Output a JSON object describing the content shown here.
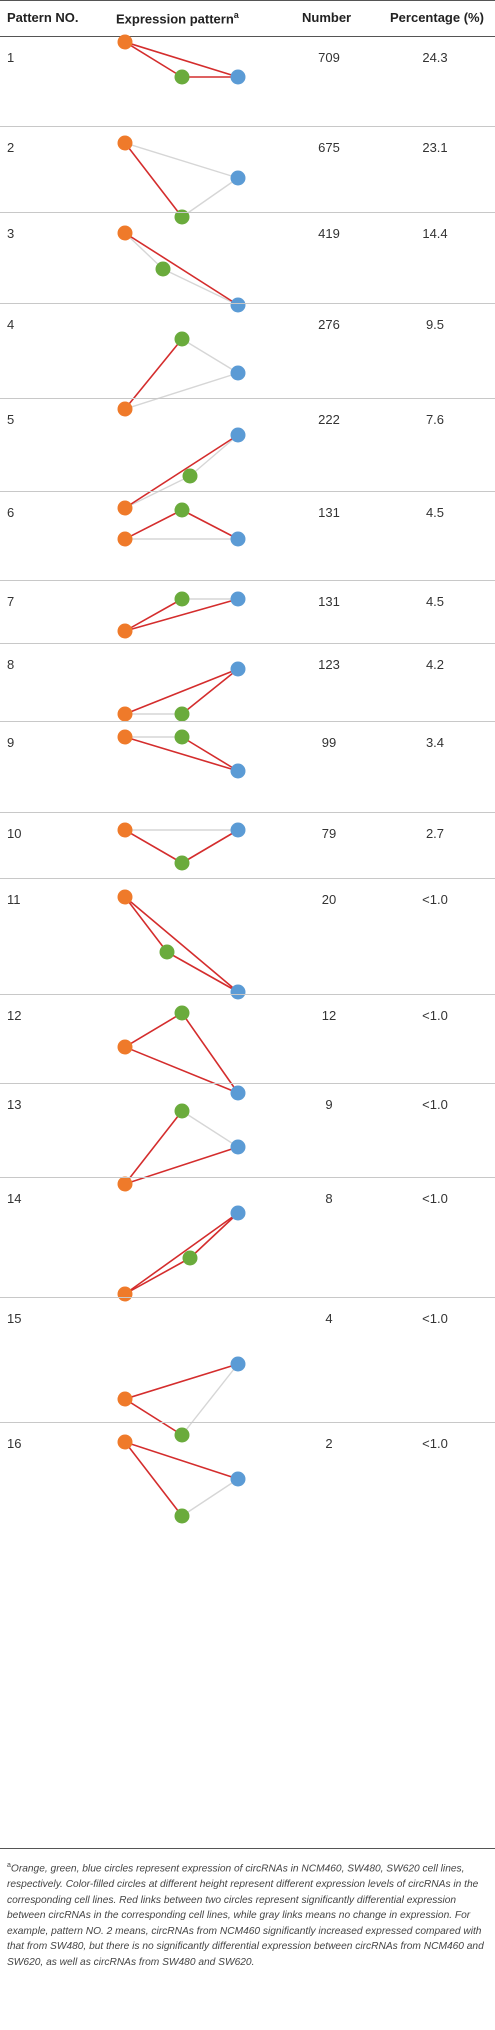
{
  "header": {
    "col_pattern": "Pattern NO.",
    "col_expression": "Expression pattern",
    "col_expression_note": "a",
    "col_number": "Number",
    "col_percentage": "Percentage (%)"
  },
  "colors": {
    "orange": "#ef7a2a",
    "green": "#6aab3c",
    "blue": "#5b9bd5",
    "link_significant": "#d42d2d",
    "link_nochange": "#d6d6d6"
  },
  "rows": [
    {
      "no": "1",
      "number": "709",
      "percentage": "24.3"
    },
    {
      "no": "2",
      "number": "675",
      "percentage": "23.1"
    },
    {
      "no": "3",
      "number": "419",
      "percentage": "14.4"
    },
    {
      "no": "4",
      "number": "276",
      "percentage": "9.5"
    },
    {
      "no": "5",
      "number": "222",
      "percentage": "7.6"
    },
    {
      "no": "6",
      "number": "131",
      "percentage": "4.5"
    },
    {
      "no": "7",
      "number": "131",
      "percentage": "4.5"
    },
    {
      "no": "8",
      "number": "123",
      "percentage": "4.2"
    },
    {
      "no": "9",
      "number": "99",
      "percentage": "3.4"
    },
    {
      "no": "10",
      "number": "79",
      "percentage": "2.7"
    },
    {
      "no": "11",
      "number": "20",
      "percentage": "<1.0"
    },
    {
      "no": "12",
      "number": "12",
      "percentage": "<1.0"
    },
    {
      "no": "13",
      "number": "9",
      "percentage": "<1.0"
    },
    {
      "no": "14",
      "number": "8",
      "percentage": "<1.0"
    },
    {
      "no": "15",
      "number": "4",
      "percentage": "<1.0"
    },
    {
      "no": "16",
      "number": "2",
      "percentage": "<1.0"
    }
  ],
  "footnote": {
    "marker": "a",
    "text": "Orange, green, blue circles represent expression of circRNAs in NCM460, SW480, SW620 cell lines, respectively. Color-filled circles at different height represent different expression levels of circRNAs in the corresponding cell lines. Red links between two circles represent significantly differential expression between circRNAs in the corresponding cell lines, while gray links means no change in expression. For example, pattern NO. 2 means, circRNAs from NCM460 significantly increased expressed compared with that from SW480, but there is no significantly differential expression between circRNAs from NCM460 and SW620, as well as circRNAs from SW480 and SW620."
  }
}
